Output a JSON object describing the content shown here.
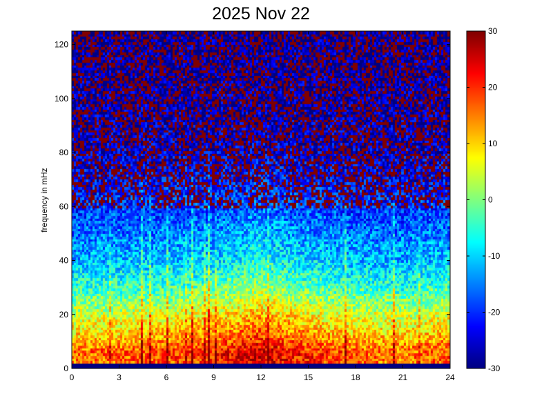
{
  "chart_data": {
    "type": "heatmap",
    "title": "2025 Nov 22",
    "xlabel": "",
    "ylabel": "frequency in mHz",
    "xlim": [
      0,
      24
    ],
    "ylim": [
      0,
      125
    ],
    "x_ticks": [
      0,
      3,
      6,
      9,
      12,
      15,
      18,
      21,
      24
    ],
    "y_ticks": [
      0,
      20,
      40,
      60,
      80,
      100,
      120
    ],
    "colorbar": {
      "colormap": "jet",
      "range": [
        -30,
        30
      ],
      "ticks": [
        30,
        20,
        10,
        0,
        -10,
        -20,
        -30
      ]
    },
    "power_profile_by_frequency": [
      {
        "freq": 0,
        "level": -30
      },
      {
        "freq": 2,
        "level": 15
      },
      {
        "freq": 6,
        "level": 16
      },
      {
        "freq": 12,
        "level": 10
      },
      {
        "freq": 20,
        "level": 4
      },
      {
        "freq": 30,
        "level": -5
      },
      {
        "freq": 40,
        "level": -12
      },
      {
        "freq": 50,
        "level": -16
      },
      {
        "freq": 60,
        "level": -20
      },
      {
        "freq": 70,
        "level": -23
      },
      {
        "freq": 80,
        "level": -25
      },
      {
        "freq": 100,
        "level": -27
      },
      {
        "freq": 125,
        "level": -28
      }
    ],
    "activity_by_hour": [
      {
        "hour": 0,
        "boost": 0
      },
      {
        "hour": 3,
        "boost": 1
      },
      {
        "hour": 6,
        "boost": 2
      },
      {
        "hour": 8,
        "boost": 3
      },
      {
        "hour": 10,
        "boost": 5
      },
      {
        "hour": 12,
        "boost": 8
      },
      {
        "hour": 14,
        "boost": 5
      },
      {
        "hour": 16,
        "boost": 3
      },
      {
        "hour": 18,
        "boost": 1
      },
      {
        "hour": 21,
        "boost": 0
      },
      {
        "hour": 24,
        "boost": 2
      }
    ]
  }
}
